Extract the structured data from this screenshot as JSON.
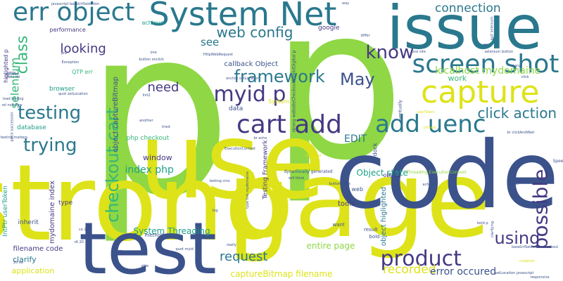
{
  "palette": {
    "background": "#ffffff",
    "lime": "#8fd744",
    "yellow": "#dde318",
    "teal": "#2a788e",
    "green": "#35b779",
    "aqua": "#1fa088",
    "navy": "#3b528b",
    "indigo": "#443983"
  },
  "words": [
    {
      "text": "p",
      "color": "lime",
      "rot": 0
    },
    {
      "text": "p",
      "color": "lime",
      "rot": 0
    },
    {
      "text": "strong",
      "color": "yellow",
      "rot": 0
    },
    {
      "text": "page",
      "color": "yellow",
      "rot": 0
    },
    {
      "text": "use",
      "color": "yellow",
      "rot": 0
    },
    {
      "text": "code",
      "color": "navy",
      "rot": 0
    },
    {
      "text": "test",
      "color": "navy",
      "rot": 0
    },
    {
      "text": "issue",
      "color": "teal",
      "rot": 0
    },
    {
      "text": "capture",
      "color": "yellow",
      "rot": 0
    },
    {
      "text": "System Net",
      "color": "teal",
      "rot": 0
    },
    {
      "text": "err object",
      "color": "teal",
      "rot": 0
    },
    {
      "text": "screen shot",
      "color": "teal",
      "rot": 0
    },
    {
      "text": "add uenc",
      "color": "teal",
      "rot": 0
    },
    {
      "text": "cart add",
      "color": "indigo",
      "rot": 0
    },
    {
      "text": "myid p",
      "color": "indigo",
      "rot": 0
    },
    {
      "text": "product",
      "color": "indigo",
      "rot": 0
    },
    {
      "text": "possible",
      "color": "indigo",
      "rot": -90
    },
    {
      "text": "checkout cart",
      "color": "green",
      "rot": -90
    },
    {
      "text": "framework",
      "color": "teal",
      "rot": 0
    },
    {
      "text": "testing",
      "color": "teal",
      "rot": 0
    },
    {
      "text": "trying",
      "color": "teal",
      "rot": 0
    },
    {
      "text": "class",
      "color": "green",
      "rot": -90
    },
    {
      "text": "know",
      "color": "indigo",
      "rot": 0
    },
    {
      "text": "May",
      "color": "navy",
      "rot": 0
    },
    {
      "text": "using",
      "color": "indigo",
      "rot": 0
    },
    {
      "text": "click action",
      "color": "teal",
      "rot": 0
    },
    {
      "text": "web config",
      "color": "teal",
      "rot": 0
    },
    {
      "text": "connection",
      "color": "teal",
      "rot": 0
    },
    {
      "text": "looking",
      "color": "indigo",
      "rot": 0
    },
    {
      "text": "need",
      "color": "indigo",
      "rot": 0
    },
    {
      "text": "request",
      "color": "teal",
      "rot": 0
    },
    {
      "text": "recorded",
      "color": "yellow",
      "rot": 0
    },
    {
      "text": "selenium",
      "color": "green",
      "rot": -90
    },
    {
      "text": "EDIT",
      "color": "teal",
      "rot": 0
    },
    {
      "text": "see",
      "color": "teal",
      "rot": 0
    },
    {
      "text": "error occured",
      "color": "navy",
      "rot": 0
    },
    {
      "text": "localhost mydomaine",
      "color": "lime",
      "rot": 0
    },
    {
      "text": "index php",
      "color": "aqua",
      "rot": 0
    },
    {
      "text": "System Threading",
      "color": "aqua",
      "rot": 0
    },
    {
      "text": "Object state",
      "color": "aqua",
      "rot": 0
    },
    {
      "text": "entire page",
      "color": "lime",
      "rot": 0
    },
    {
      "text": "window",
      "color": "indigo",
      "rot": 0
    },
    {
      "text": "filename code",
      "color": "indigo",
      "rot": 0
    },
    {
      "text": "clarify",
      "color": "teal",
      "rot": 0
    },
    {
      "text": "application",
      "color": "yellow",
      "rot": 0
    },
    {
      "text": "captureBitmap filename",
      "color": "yellow",
      "rot": 0
    },
    {
      "text": "object captureBitmap",
      "color": "navy",
      "rot": -90
    },
    {
      "text": "mydomaine index",
      "color": "indigo",
      "rot": -90
    },
    {
      "text": "Testing Framework",
      "color": "indigo",
      "rot": -90
    },
    {
      "text": "object higlighted",
      "color": "teal",
      "rot": -90
    },
    {
      "text": "tools",
      "color": "indigo",
      "rot": 0
    },
    {
      "text": "work",
      "color": "green",
      "rot": 0
    },
    {
      "text": "callback Object",
      "color": "navy",
      "rot": 0
    },
    {
      "text": "php checkout",
      "color": "green",
      "rot": 0
    },
    {
      "text": "database",
      "color": "aqua",
      "rot": 0
    },
    {
      "text": "browser",
      "color": "aqua",
      "rot": 0
    },
    {
      "text": "inherit",
      "color": "navy",
      "rot": 0
    },
    {
      "text": "achieve",
      "color": "aqua",
      "rot": 0
    },
    {
      "text": "performance",
      "color": "indigo",
      "rot": 0
    },
    {
      "text": "QTP err",
      "color": "green",
      "rot": 0
    },
    {
      "text": "data",
      "color": "navy",
      "rot": 0
    },
    {
      "text": "google",
      "color": "indigo",
      "rot": 0
    },
    {
      "text": "type",
      "color": "indigo",
      "rot": 0
    },
    {
      "text": "web",
      "color": "navy",
      "rot": 0
    },
    {
      "text": "object",
      "color": "indigo",
      "rot": 0
    },
    {
      "text": "dock",
      "color": "navy",
      "rot": -90
    },
    {
      "text": "higlighted p",
      "color": "indigo",
      "rot": -90
    },
    {
      "text": "IntPtr userToken",
      "color": "aqua",
      "rot": -90
    },
    {
      "text": "System",
      "color": "yellow",
      "rot": 0
    },
    {
      "text": "method",
      "color": "navy",
      "rot": 0
    },
    {
      "text": "want",
      "color": "navy",
      "rot": 0
    },
    {
      "text": "result",
      "color": "navy",
      "rot": 0
    },
    {
      "text": "bold",
      "color": "navy",
      "rot": 0
    },
    {
      "text": "Speed",
      "color": "navy",
      "rot": 0
    },
    {
      "text": "eventually",
      "color": "navy",
      "rot": -90
    },
    {
      "text": "Threading ExecutionContext",
      "color": "lime",
      "rot": 0
    },
    {
      "text": "dynamically generated",
      "color": "navy",
      "rot": 0
    },
    {
      "text": "uenc rel",
      "color": "navy",
      "rot": 0
    },
    {
      "text": "load testing",
      "color": "navy",
      "rot": 0
    },
    {
      "text": "testing matters",
      "color": "navy",
      "rot": 0
    },
    {
      "text": "javascript baseUrlSelection",
      "color": "navy",
      "rot": 0
    },
    {
      "text": "onclick setLocation",
      "color": "navy",
      "rot": 0
    },
    {
      "text": "button onclick",
      "color": "navy",
      "rot": 0
    },
    {
      "text": "selenium button",
      "color": "navy",
      "rot": 0
    },
    {
      "text": "quot setLocation",
      "color": "navy",
      "rot": 0
    },
    {
      "text": "rel nofollow",
      "color": "navy",
      "rot": 0
    },
    {
      "text": "br clickAndWait",
      "color": "navy",
      "rot": 0
    },
    {
      "text": "localhost",
      "color": "yellow",
      "rot": 0
    },
    {
      "text": "coeplete",
      "color": "yellow",
      "rot": 0
    },
    {
      "text": "userToken",
      "color": "yellow",
      "rot": 0
    },
    {
      "text": "tried",
      "color": "navy",
      "rot": 0
    },
    {
      "text": "way",
      "color": "navy",
      "rot": 0
    },
    {
      "text": "pre",
      "color": "navy",
      "rot": 0
    },
    {
      "text": "one",
      "color": "navy",
      "rot": 0
    },
    {
      "text": "clicked",
      "color": "yellow",
      "rot": 0
    },
    {
      "text": "HttpWebRequest",
      "color": "navy",
      "rot": 0
    },
    {
      "text": "Exception",
      "color": "navy",
      "rot": 0
    },
    {
      "text": "website",
      "color": "navy",
      "rot": 0
    },
    {
      "text": "rA 20",
      "color": "navy",
      "rot": 0
    },
    {
      "text": "br echo",
      "color": "navy",
      "rot": 0
    },
    {
      "text": "log",
      "color": "navy",
      "rot": 0
    },
    {
      "text": "etc",
      "color": "navy",
      "rot": 0
    },
    {
      "text": "really",
      "color": "navy",
      "rot": 0
    },
    {
      "text": "able",
      "color": "navy",
      "rot": 0
    },
    {
      "text": "error",
      "color": "navy",
      "rot": 0
    },
    {
      "text": "baseUrlSelection checkout",
      "color": "navy",
      "rot": 0
    },
    {
      "text": "setLocation javascript",
      "color": "navy",
      "rot": 0
    },
    {
      "text": "responsive",
      "color": "navy",
      "rot": 0
    },
    {
      "text": "quot myid",
      "color": "navy",
      "rot": 0
    },
    {
      "text": "differ",
      "color": "navy",
      "rot": 0
    },
    {
      "text": "will think",
      "color": "navy",
      "rot": 0
    },
    {
      "text": "testing cms",
      "color": "navy",
      "rot": 0
    },
    {
      "text": "another",
      "color": "navy",
      "rot": 0
    },
    {
      "text": "many",
      "color": "navy",
      "rot": 0
    },
    {
      "text": "one site",
      "color": "navy",
      "rot": 0
    },
    {
      "text": "click",
      "color": "navy",
      "rot": 0
    },
    {
      "text": "Init2",
      "color": "navy",
      "rot": 0
    },
    {
      "text": "ExecutionContext",
      "color": "navy",
      "rot": 0
    },
    {
      "text": "new",
      "color": "navy",
      "rot": 0
    },
    {
      "text": "server",
      "color": "navy",
      "rot": 0
    },
    {
      "text": "dragged",
      "color": "green",
      "rot": 0
    },
    {
      "text": "strong websiteCheckoutIsValidDigital p",
      "color": "navy",
      "rot": -90
    },
    {
      "text": "type link mydomaine",
      "color": "navy",
      "rot": -90
    },
    {
      "text": "ca 20",
      "color": "navy",
      "rot": 0
    },
    {
      "text": "20 ee",
      "color": "navy",
      "rot": 0
    },
    {
      "text": "ee",
      "color": "navy",
      "rot": 0
    },
    {
      "text": "bold p",
      "color": "navy",
      "rot": 0
    },
    {
      "text": "achieve",
      "color": "navy",
      "rot": 0
    },
    {
      "text": "button class",
      "color": "navy",
      "rot": 0
    },
    {
      "text": "quit selenium",
      "color": "navy",
      "rot": -90
    },
    {
      "text": "quick succession",
      "color": "navy",
      "rot": -90
    },
    {
      "text": "clarifying",
      "color": "navy",
      "rot": -90
    }
  ]
}
